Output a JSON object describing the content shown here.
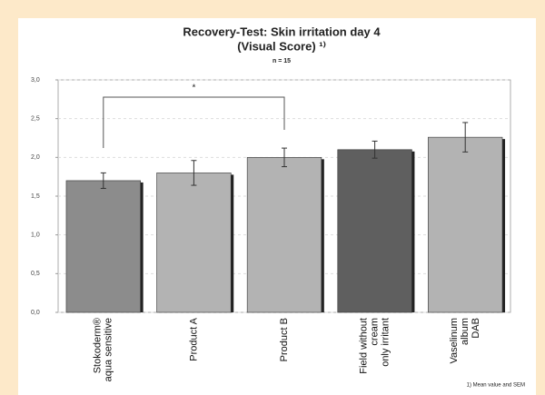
{
  "chart_data": {
    "type": "bar",
    "title": [
      "Recovery-Test: Skin irritation day 4",
      "(Visual Score) ¹⁾"
    ],
    "subtitle": "n = 15",
    "footnote": "1) Mean value and SEM",
    "annotation": "*",
    "categories": [
      [
        "Stokoderm®",
        "aqua sensitive"
      ],
      [
        "Product A"
      ],
      [
        "Product B"
      ],
      [
        "Field without",
        "cream",
        "only irritant"
      ],
      [
        "Vaselinum",
        "album",
        "DAB"
      ]
    ],
    "values": [
      1.7,
      1.8,
      2.0,
      2.1,
      2.26
    ],
    "errors": [
      0.1,
      0.16,
      0.12,
      0.11,
      0.19
    ],
    "colors": [
      "#8c8c8c",
      "#b3b3b3",
      "#b3b3b3",
      "#5f5f5f",
      "#b3b3b3"
    ],
    "ylim": [
      0,
      3
    ],
    "yticks": [
      {
        "value": 0,
        "label": "0,0"
      },
      {
        "value": 0.5,
        "label": "0,5"
      },
      {
        "value": 1,
        "label": "1,0"
      },
      {
        "value": 1.5,
        "label": "1,5"
      },
      {
        "value": 2,
        "label": "2,0"
      },
      {
        "value": 2.5,
        "label": "2,5"
      },
      {
        "value": 3,
        "label": "3,0"
      }
    ],
    "grid": true
  }
}
